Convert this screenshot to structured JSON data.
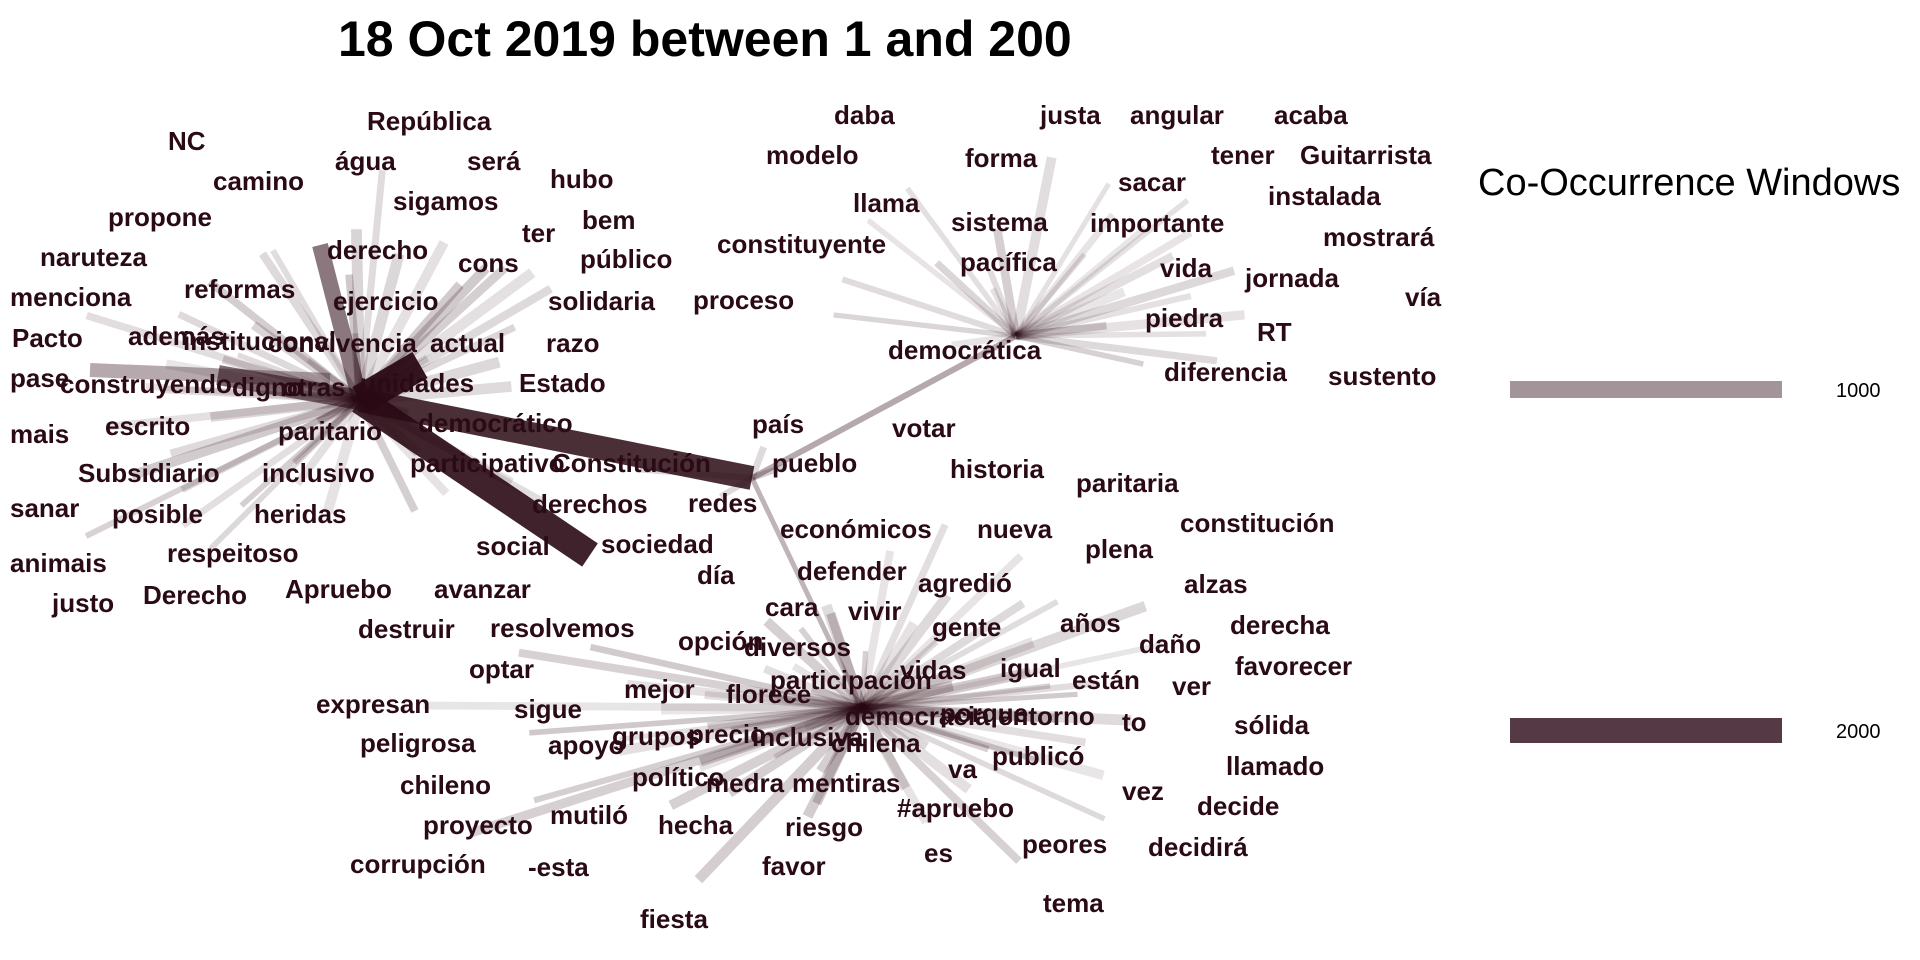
{
  "title": "18 Oct 2019 between 1 and 200",
  "legend": {
    "title": "Co-Occurrence Windows",
    "items": [
      {
        "label": "1000",
        "color": "#a39499"
      },
      {
        "label": "2000",
        "color": "#553a45"
      }
    ]
  },
  "colors": {
    "edge": "#2a0a14",
    "text": "#2a0a14"
  },
  "chart_data": {
    "type": "network",
    "hubs": [
      "democrático",
      "Constitución",
      "democrática",
      "participación"
    ],
    "strong_links": [
      [
        "democrático",
        "Constitución"
      ],
      [
        "democrático",
        "sociedad"
      ],
      [
        "democrático",
        "Pacto"
      ],
      [
        "democrático",
        "derecho"
      ],
      [
        "Constitución",
        "democrática"
      ],
      [
        "Constitución",
        "participación"
      ]
    ],
    "word_groups": {
      "democrático": [
        "República",
        "NC",
        "água",
        "será",
        "camino",
        "sigamos",
        "hubo",
        "propone",
        "bem",
        "derecho",
        "ter",
        "naruteza",
        "cons",
        "público",
        "reformas",
        "menciona",
        "ejercicio",
        "solidaria",
        "además",
        "institucional",
        "convivencia",
        "actual",
        "razo",
        "Pacto",
        "pase",
        "construyendo",
        "digno",
        "otras",
        "unidades",
        "Estado",
        "mais",
        "escrito",
        "paritario",
        "democrático",
        "Subsidiario",
        "inclusivo",
        "participativo",
        "sanar",
        "posible",
        "heridas",
        "animais",
        "respeitoso",
        "justo",
        "Derecho",
        "derechos",
        "social",
        "sociedad",
        "Apruebo",
        "avanzar"
      ],
      "Constitución": [
        "Constitución",
        "país",
        "pueblo",
        "redes"
      ],
      "democrática": [
        "daba",
        "justa",
        "angular",
        "acaba",
        "modelo",
        "forma",
        "tener",
        "Guitarrista",
        "sacar",
        "llama",
        "instalada",
        "sistema",
        "importante",
        "constituyente",
        "mostrará",
        "pacífica",
        "vida",
        "jornada",
        "proceso",
        "vía",
        "piedra",
        "RT",
        "democrática",
        "diferencia",
        "sustento"
      ],
      "participación": [
        "votar",
        "historia",
        "paritaria",
        "económicos",
        "nueva",
        "constitución",
        "plena",
        "defender",
        "día",
        "agredió",
        "alzas",
        "cara",
        "vivir",
        "destruir",
        "resolvemos",
        "años",
        "derecha",
        "gente",
        "opción",
        "daño",
        "diversos",
        "optar",
        "vidas",
        "igual",
        "favorecer",
        "participación",
        "están",
        "ver",
        "mejor",
        "florece",
        "expresan",
        "sigue",
        "porque",
        "entorno",
        "democracia",
        "to",
        "sólida",
        "peligrosa",
        "apoyo",
        "grupos",
        "precio",
        "inclusiva",
        "chilena",
        "publicó",
        "llamado",
        "chileno",
        "político",
        "medra",
        "va",
        "mentiras",
        "vez",
        "decide",
        "#apruebo",
        "proyecto",
        "mutiló",
        "hecha",
        "riesgo",
        "peores",
        "decidirá",
        "corrupción",
        "-esta",
        "favor",
        "es",
        "tema",
        "fiesta"
      ]
    }
  }
}
